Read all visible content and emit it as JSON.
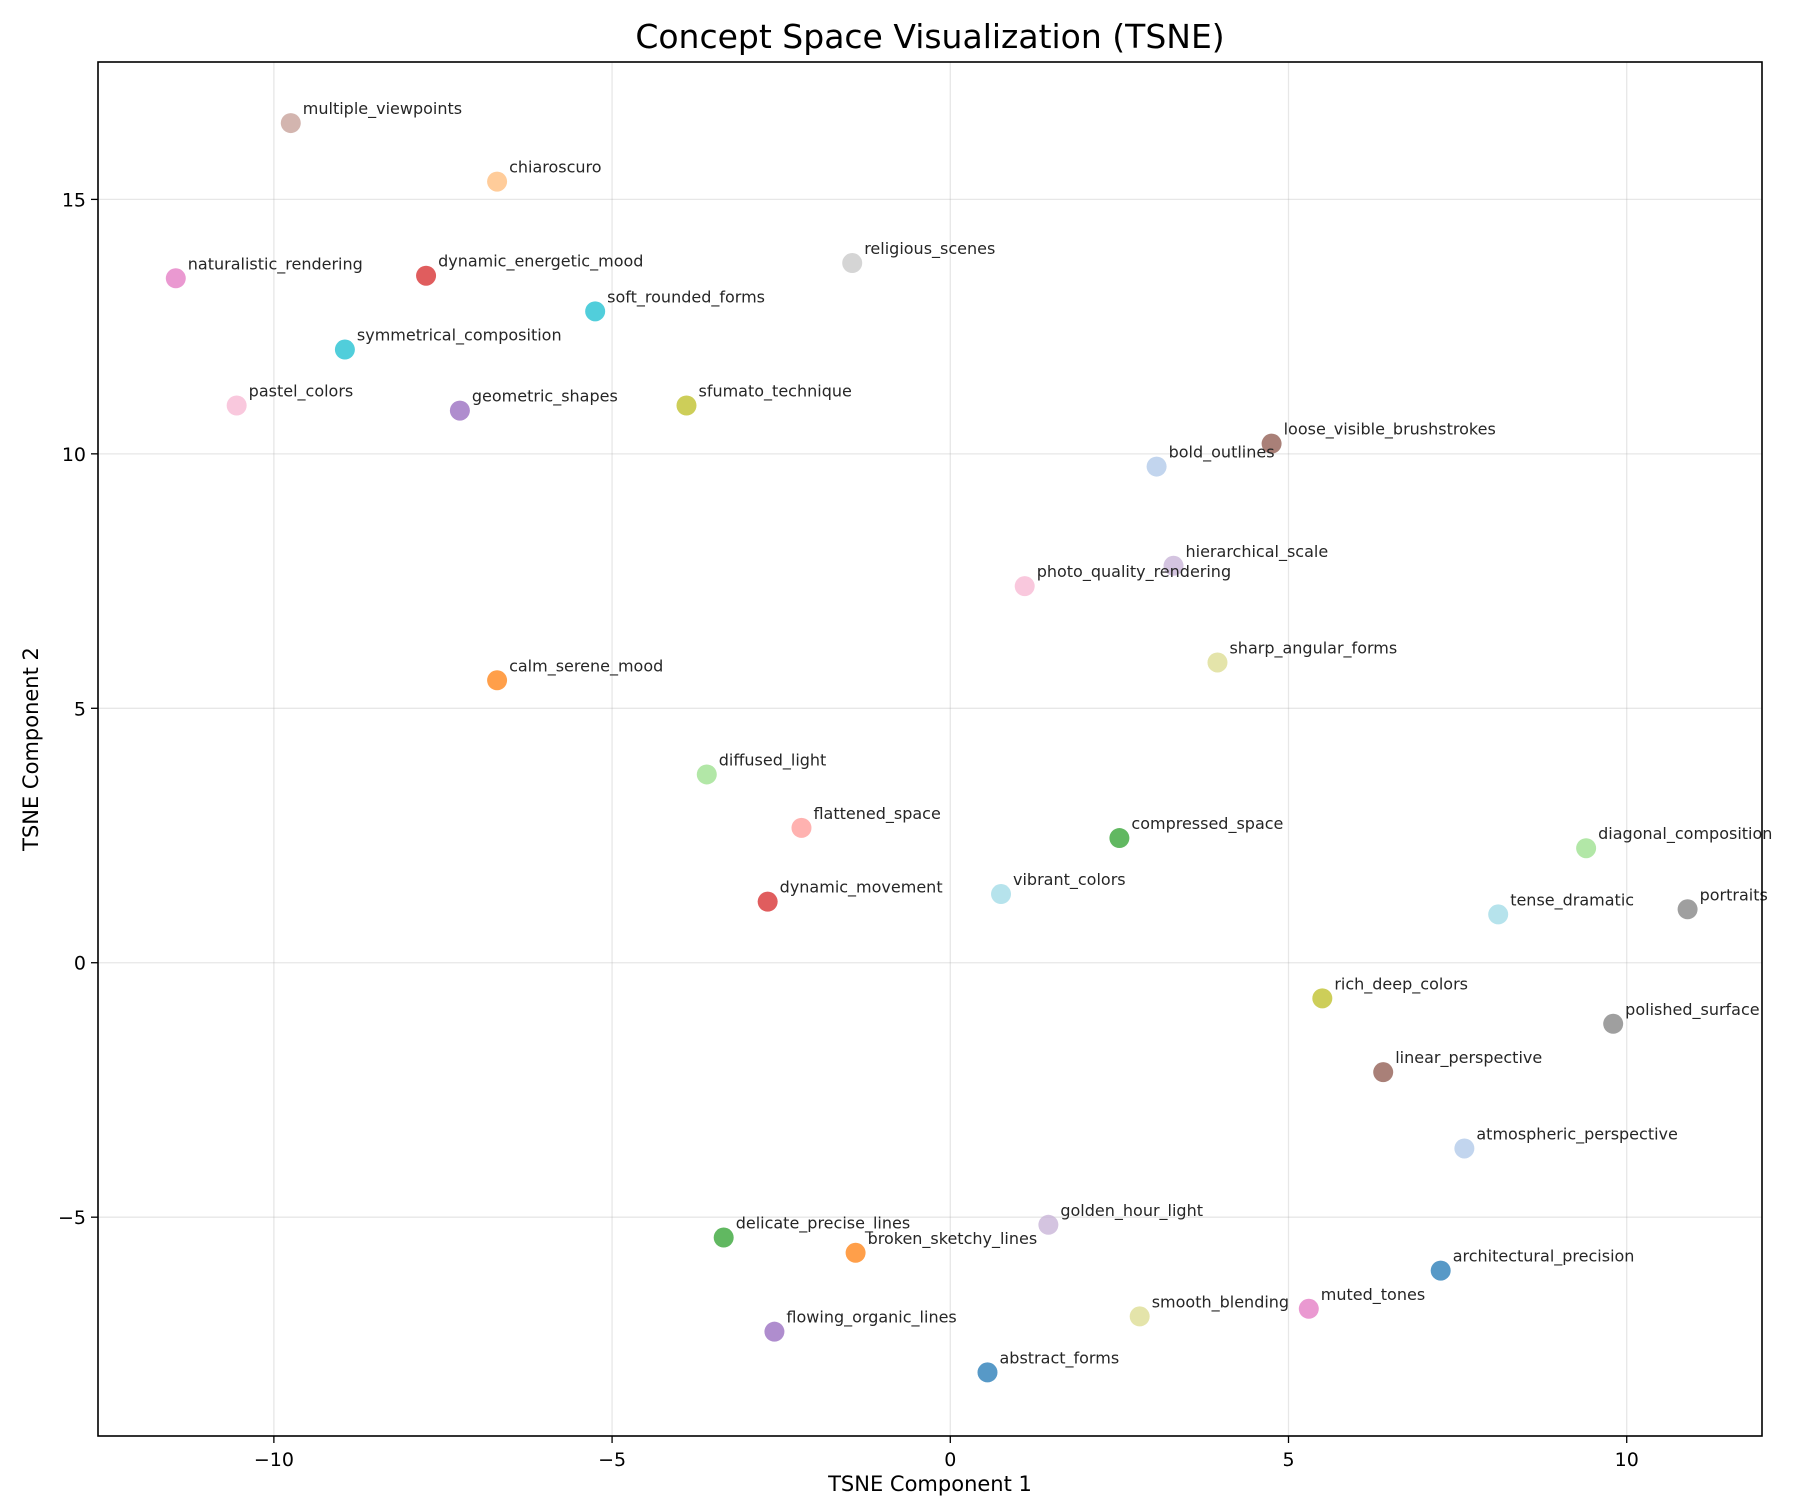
{
  "chart_data": {
    "type": "scatter",
    "title": "Concept Space Visualization (TSNE)",
    "xlabel": "TSNE Component 1",
    "ylabel": "TSNE Component 2",
    "xlim": [
      -12.6,
      12.0
    ],
    "ylim": [
      -9.3,
      17.7
    ],
    "xticks": [
      -10,
      -5,
      0,
      5,
      10
    ],
    "xtick_labels": [
      "−10",
      "−5",
      "0",
      "5",
      "10"
    ],
    "yticks": [
      -5,
      0,
      5,
      10,
      15
    ],
    "ytick_labels": [
      "−5",
      "0",
      "5",
      "10",
      "15"
    ],
    "grid": true,
    "legend": "none",
    "points": [
      {
        "label": "multiple_viewpoints",
        "x": -9.75,
        "y": 16.5,
        "color": "#c49c94"
      },
      {
        "label": "chiaroscuro",
        "x": -6.7,
        "y": 15.35,
        "color": "#ffbb78"
      },
      {
        "label": "naturalistic_rendering",
        "x": -11.45,
        "y": 13.45,
        "color": "#e377c2"
      },
      {
        "label": "dynamic_energetic_mood",
        "x": -7.75,
        "y": 13.5,
        "color": "#d62728"
      },
      {
        "label": "religious_scenes",
        "x": -1.45,
        "y": 13.75,
        "color": "#c7c7c7"
      },
      {
        "label": "soft_rounded_forms",
        "x": -5.25,
        "y": 12.8,
        "color": "#17becf"
      },
      {
        "label": "symmetrical_composition",
        "x": -8.95,
        "y": 12.05,
        "color": "#17becf"
      },
      {
        "label": "pastel_colors",
        "x": -10.55,
        "y": 10.95,
        "color": "#f7b6d2"
      },
      {
        "label": "geometric_shapes",
        "x": -7.25,
        "y": 10.85,
        "color": "#9467bd"
      },
      {
        "label": "sfumato_technique",
        "x": -3.9,
        "y": 10.95,
        "color": "#bcbd22"
      },
      {
        "label": "loose_visible_brushstrokes",
        "x": 4.75,
        "y": 10.2,
        "color": "#8c564b"
      },
      {
        "label": "bold_outlines",
        "x": 3.05,
        "y": 9.75,
        "color": "#aec7e8"
      },
      {
        "label": "hierarchical_scale",
        "x": 3.3,
        "y": 7.8,
        "color": "#c5b0d5"
      },
      {
        "label": "photo_quality_rendering",
        "x": 1.1,
        "y": 7.4,
        "color": "#f7b6d2"
      },
      {
        "label": "sharp_angular_forms",
        "x": 3.95,
        "y": 5.9,
        "color": "#dbdb8d"
      },
      {
        "label": "calm_serene_mood",
        "x": -6.7,
        "y": 5.55,
        "color": "#ff7f0e"
      },
      {
        "label": "diffused_light",
        "x": -3.6,
        "y": 3.7,
        "color": "#98df8a"
      },
      {
        "label": "flattened_space",
        "x": -2.2,
        "y": 2.65,
        "color": "#ff9896"
      },
      {
        "label": "compressed_space",
        "x": 2.5,
        "y": 2.45,
        "color": "#2ca02c"
      },
      {
        "label": "diagonal_composition",
        "x": 9.4,
        "y": 2.25,
        "color": "#98df8a"
      },
      {
        "label": "vibrant_colors",
        "x": 0.75,
        "y": 1.35,
        "color": "#9edae5"
      },
      {
        "label": "dynamic_movement",
        "x": -2.7,
        "y": 1.2,
        "color": "#d62728"
      },
      {
        "label": "tense_dramatic",
        "x": 8.1,
        "y": 0.95,
        "color": "#9edae5"
      },
      {
        "label": "portraits",
        "x": 10.9,
        "y": 1.05,
        "color": "#7f7f7f"
      },
      {
        "label": "rich_deep_colors",
        "x": 5.5,
        "y": -0.7,
        "color": "#bcbd22"
      },
      {
        "label": "polished_surface",
        "x": 9.8,
        "y": -1.2,
        "color": "#7f7f7f"
      },
      {
        "label": "linear_perspective",
        "x": 6.4,
        "y": -2.15,
        "color": "#8c564b"
      },
      {
        "label": "atmospheric_perspective",
        "x": 7.6,
        "y": -3.65,
        "color": "#aec7e8"
      },
      {
        "label": "golden_hour_light",
        "x": 1.45,
        "y": -5.15,
        "color": "#c5b0d5"
      },
      {
        "label": "delicate_precise_lines",
        "x": -3.35,
        "y": -5.4,
        "color": "#2ca02c"
      },
      {
        "label": "broken_sketchy_lines",
        "x": -1.4,
        "y": -5.7,
        "color": "#ff7f0e"
      },
      {
        "label": "architectural_precision",
        "x": 7.25,
        "y": -6.05,
        "color": "#1f77b4"
      },
      {
        "label": "flowing_organic_lines",
        "x": -2.6,
        "y": -7.25,
        "color": "#9467bd"
      },
      {
        "label": "smooth_blending",
        "x": 2.8,
        "y": -6.95,
        "color": "#dbdb8d"
      },
      {
        "label": "muted_tones",
        "x": 5.3,
        "y": -6.8,
        "color": "#e377c2"
      },
      {
        "label": "abstract_forms",
        "x": 0.55,
        "y": -8.05,
        "color": "#1f77b4"
      }
    ]
  }
}
